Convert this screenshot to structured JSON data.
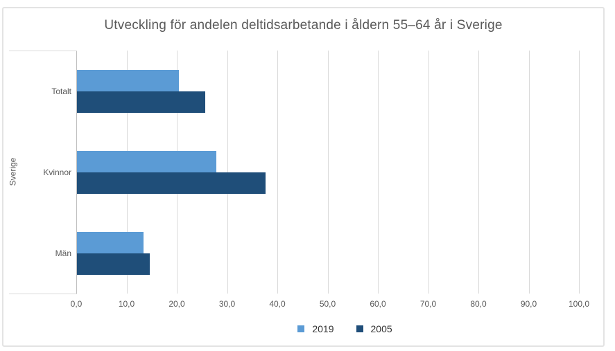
{
  "chart": {
    "title": "Utveckling för andelen deltidsarbetande i åldern 55–64 år i Sverige"
  },
  "chart_data": {
    "type": "bar",
    "orientation": "horizontal",
    "title": "Utveckling för andelen deltidsarbetande i åldern 55–64 år i Sverige",
    "outer_category_label": "Sverige",
    "categories": [
      "Totalt",
      "Kvinnor",
      "Män"
    ],
    "series": [
      {
        "name": "2019",
        "color": "#5B9BD5",
        "values": [
          20.3,
          27.7,
          13.3
        ]
      },
      {
        "name": "2005",
        "color": "#1F4E79",
        "values": [
          25.5,
          37.5,
          14.5
        ]
      }
    ],
    "xlim": [
      0,
      100
    ],
    "x_tick_labels": [
      "0,0",
      "10,0",
      "20,0",
      "30,0",
      "40,0",
      "50,0",
      "60,0",
      "70,0",
      "80,0",
      "90,0",
      "100,0"
    ],
    "grid": true,
    "legend_position": "bottom"
  },
  "colors": {
    "series_2019": "#5B9BD5",
    "series_2005": "#1F4E79",
    "gridline": "#D9D9D9",
    "axis_line": "#BFBFBF",
    "text": "#595959",
    "legend_text": "#333333",
    "frame_border": "#E3E3E3"
  }
}
